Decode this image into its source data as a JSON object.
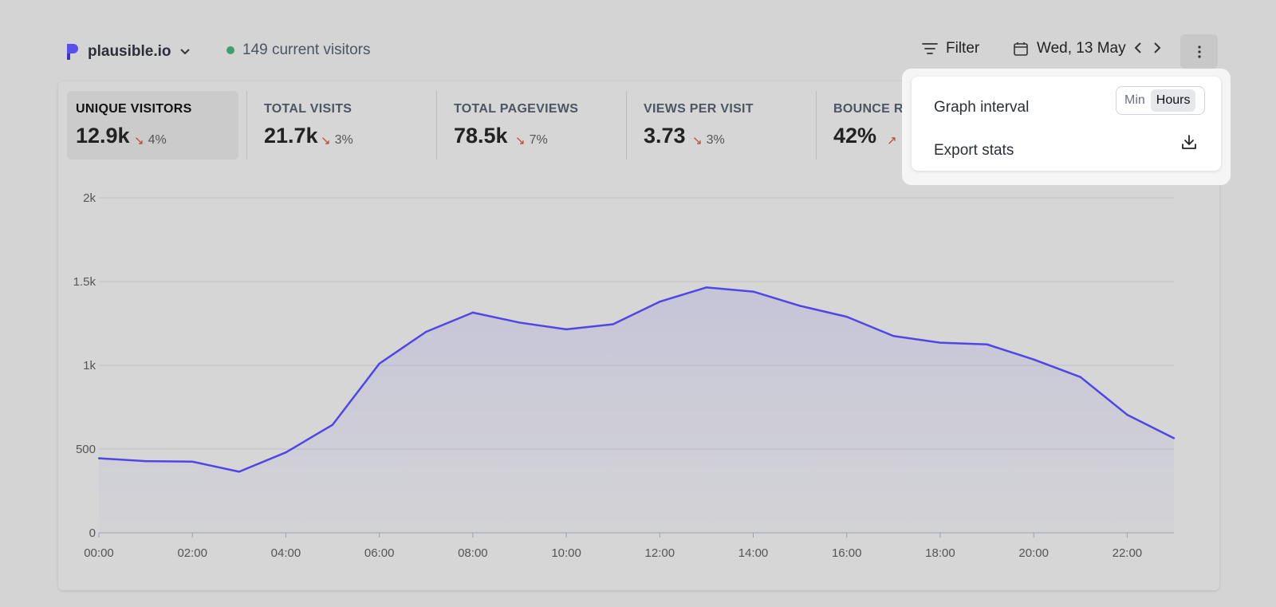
{
  "header": {
    "site_name": "plausible.io",
    "current_visitors": "149 current visitors",
    "filter_label": "Filter",
    "date_label": "Wed, 13 May"
  },
  "metrics": [
    {
      "label": "UNIQUE VISITORS",
      "value": "12.9k",
      "change": "4%",
      "direction": "down",
      "active": true
    },
    {
      "label": "TOTAL VISITS",
      "value": "21.7k",
      "change": "3%",
      "direction": "down"
    },
    {
      "label": "TOTAL PAGEVIEWS",
      "value": "78.5k",
      "change": "7%",
      "direction": "down"
    },
    {
      "label": "VIEWS PER VISIT",
      "value": "3.73",
      "change": "3%",
      "direction": "down"
    },
    {
      "label": "BOUNCE R",
      "value": "42%",
      "change": "",
      "direction": "up"
    }
  ],
  "dropdown": {
    "graph_interval_label": "Graph interval",
    "interval_options": [
      "Min",
      "Hours"
    ],
    "selected_interval": "Hours",
    "export_label": "Export stats"
  },
  "colors": {
    "line": "#4f46e5",
    "positive": "#3d9e72",
    "negative": "#c2413a"
  },
  "chart_data": {
    "type": "area",
    "x": [
      "00:00",
      "01:00",
      "02:00",
      "03:00",
      "04:00",
      "05:00",
      "06:00",
      "07:00",
      "08:00",
      "09:00",
      "10:00",
      "11:00",
      "12:00",
      "13:00",
      "14:00",
      "15:00",
      "16:00",
      "17:00",
      "18:00",
      "19:00",
      "20:00",
      "21:00",
      "22:00",
      "23:00"
    ],
    "x_tick_labels": [
      "00:00",
      "02:00",
      "04:00",
      "06:00",
      "08:00",
      "10:00",
      "12:00",
      "14:00",
      "16:00",
      "18:00",
      "20:00",
      "22:00"
    ],
    "values": [
      445,
      428,
      425,
      365,
      480,
      645,
      1010,
      1200,
      1315,
      1255,
      1215,
      1245,
      1380,
      1465,
      1440,
      1355,
      1290,
      1175,
      1135,
      1125,
      1035,
      930,
      705,
      565
    ],
    "y_ticks": [
      0,
      500,
      1000,
      1500,
      2000
    ],
    "y_tick_labels": [
      "0",
      "500",
      "1k",
      "1.5k",
      "2k"
    ],
    "ylim": [
      0,
      2000
    ],
    "grid": true
  }
}
